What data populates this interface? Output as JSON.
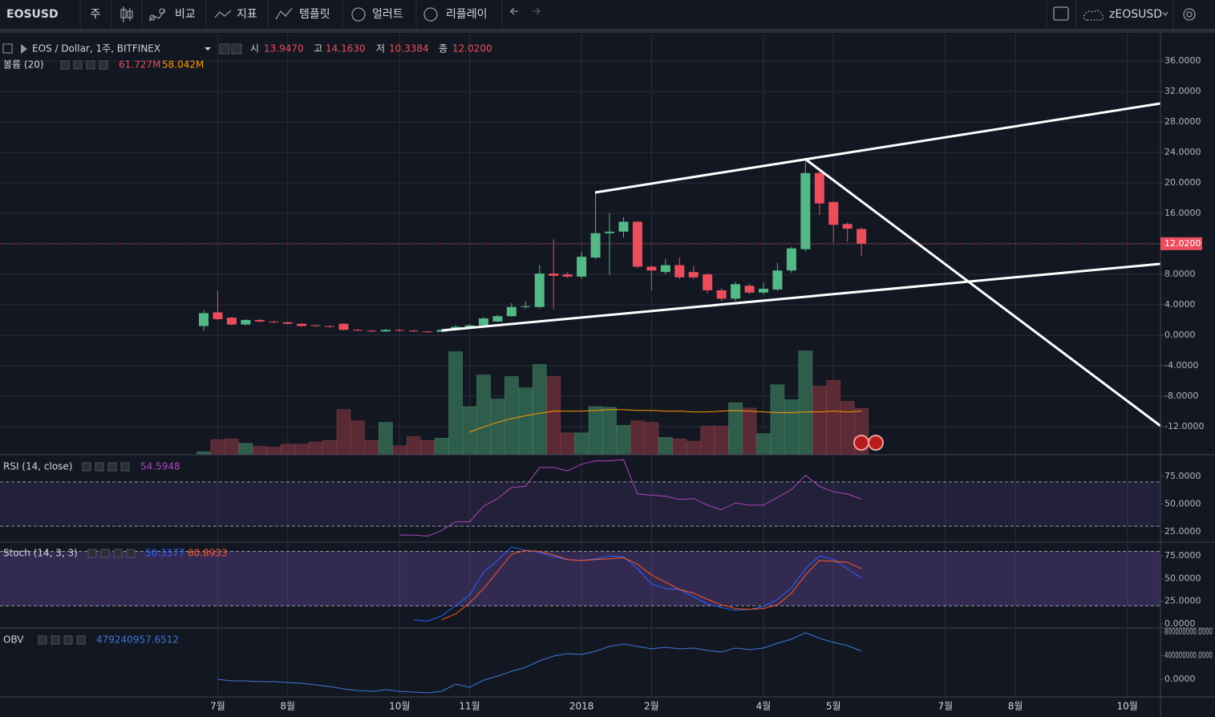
{
  "toolbar": {
    "symbol": "EOSUSD",
    "interval": "주",
    "items": [
      "비교",
      "지표",
      "템플릿",
      "얼러트",
      "리플레이"
    ],
    "account": "zEOSUSD"
  },
  "time_axis": {
    "categories": [
      null,
      "7월",
      null,
      null,
      null,
      null,
      "8월",
      null,
      null,
      null,
      null,
      null,
      null,
      null,
      "10월",
      null,
      null,
      null,
      null,
      "11월",
      null,
      null,
      null,
      null,
      null,
      null,
      null,
      "2018",
      null,
      null,
      null,
      null,
      "2월",
      null,
      null,
      null,
      null,
      null,
      null,
      null,
      "4월",
      null,
      null,
      null,
      null,
      "5월",
      null,
      null,
      null,
      null,
      null,
      null,
      null,
      "7월",
      null,
      null,
      null,
      null,
      "8월",
      null,
      null,
      null,
      null,
      null,
      null,
      null,
      "10월",
      null,
      null
    ]
  },
  "chart_data": [
    {
      "type": "candlestick",
      "title": "EOS / Dollar, 1주, BITFINEX",
      "legend_items": [
        {
          "label": "시",
          "value": "13.9470"
        },
        {
          "label": "고",
          "value": "14.1630"
        },
        {
          "label": "저",
          "value": "10.3384"
        },
        {
          "label": "종",
          "value": "12.0200"
        }
      ],
      "open": [
        1.2,
        3.0,
        2.3,
        1.4,
        2.0,
        1.8,
        1.7,
        1.5,
        1.3,
        1.2,
        1.5,
        0.7,
        0.6,
        0.5,
        0.7,
        0.6,
        0.5,
        0.45,
        0.7,
        1.1,
        1.3,
        1.8,
        2.5,
        3.7,
        3.7,
        8.1,
        8.0,
        7.7,
        10.2,
        13.4,
        13.6,
        14.9,
        9.0,
        8.3,
        9.2,
        8.3,
        8.0,
        5.9,
        4.8,
        6.5,
        5.6,
        6.0,
        8.5,
        11.3,
        21.3,
        17.5,
        14.6,
        13.947
      ],
      "high": [
        3.3,
        5.8,
        2.4,
        2.1,
        2.1,
        1.9,
        1.8,
        1.6,
        1.4,
        1.3,
        1.6,
        0.8,
        0.7,
        0.8,
        0.8,
        0.7,
        0.6,
        0.8,
        1.3,
        1.5,
        2.4,
        2.7,
        4.2,
        4.5,
        9.2,
        12.6,
        8.3,
        11.0,
        18.7,
        16.0,
        15.5,
        15.0,
        9.2,
        10.0,
        10.2,
        9.1,
        8.2,
        6.2,
        7.0,
        6.8,
        6.9,
        9.5,
        11.6,
        22.8,
        21.8,
        17.6,
        14.8,
        14.163
      ],
      "low": [
        0.6,
        2.0,
        1.3,
        1.3,
        1.7,
        1.6,
        1.4,
        1.1,
        1.1,
        1.0,
        0.6,
        0.5,
        0.4,
        0.4,
        0.5,
        0.4,
        0.35,
        0.4,
        0.6,
        1.0,
        1.2,
        1.7,
        2.4,
        3.5,
        3.5,
        3.4,
        7.5,
        7.4,
        10.0,
        7.9,
        12.8,
        8.8,
        5.9,
        8.0,
        7.4,
        7.4,
        5.5,
        4.5,
        4.5,
        5.4,
        5.3,
        5.8,
        8.2,
        11.0,
        15.8,
        12.2,
        12.3,
        10.3384
      ],
      "close": [
        2.9,
        2.1,
        1.4,
        2.0,
        1.8,
        1.7,
        1.5,
        1.2,
        1.2,
        1.1,
        0.7,
        0.6,
        0.5,
        0.7,
        0.6,
        0.5,
        0.45,
        0.7,
        1.1,
        1.3,
        2.2,
        2.5,
        3.7,
        3.8,
        8.1,
        7.8,
        7.7,
        10.3,
        13.4,
        13.6,
        14.9,
        9.0,
        8.5,
        9.2,
        7.6,
        7.6,
        5.9,
        4.8,
        6.7,
        5.6,
        6.1,
        8.5,
        11.4,
        21.3,
        17.3,
        14.5,
        14.0,
        12.02
      ],
      "up_color": "#53b987",
      "down_color": "#eb4d5c",
      "ylim": [
        -15.7,
        39.6
      ],
      "yticks": [
        {
          "value": 36,
          "label": "36.0000"
        },
        {
          "value": 32,
          "label": "32.0000"
        },
        {
          "value": 28,
          "label": "28.0000"
        },
        {
          "value": 24,
          "label": "24.0000"
        },
        {
          "value": 20,
          "label": "20.0000"
        },
        {
          "value": 16,
          "label": "16.0000"
        },
        {
          "value": 12,
          "label": "12.0000"
        },
        {
          "value": 8,
          "label": "8.0000"
        },
        {
          "value": 4,
          "label": "4.0000"
        },
        {
          "value": 0,
          "label": "0.0000"
        },
        {
          "value": -4,
          "label": "-4.0000"
        },
        {
          "value": -8,
          "label": "-8.0000"
        },
        {
          "value": -12,
          "label": "-12.0000"
        }
      ],
      "grid": true
    },
    {
      "type": "bar",
      "title": "볼륨 (20)",
      "values": [
        4,
        20,
        21,
        15,
        11,
        10,
        14,
        14,
        17,
        19,
        60,
        45,
        19,
        43,
        12,
        24,
        19,
        22,
        137,
        64,
        106,
        74,
        104,
        89,
        120,
        104,
        29,
        29,
        64,
        63,
        39,
        45,
        43,
        23,
        21,
        18,
        38,
        38,
        69,
        62,
        28,
        93,
        73,
        138,
        91,
        99,
        71,
        61.727
      ],
      "ma_values": [
        null,
        null,
        null,
        null,
        null,
        null,
        null,
        null,
        null,
        null,
        null,
        null,
        null,
        null,
        null,
        null,
        null,
        null,
        null,
        30,
        37,
        43,
        48,
        52,
        55,
        58,
        58,
        58,
        59,
        60,
        60,
        59,
        59,
        58,
        58,
        57,
        57,
        58,
        59,
        58,
        57,
        56,
        56,
        57,
        57,
        58,
        57,
        58.042
      ],
      "legend_labels": [
        "61.727M",
        "58.042M"
      ],
      "up_color": "#2f5d4b",
      "down_color": "#5a2a35",
      "ma_color": "#ff9800",
      "legend_color": "#e04f5f",
      "ylim": [
        0,
        560
      ]
    },
    {
      "type": "line",
      "title": "RSI (14, close)",
      "values": [
        null,
        null,
        null,
        null,
        null,
        null,
        null,
        null,
        null,
        null,
        null,
        null,
        null,
        null,
        22,
        22,
        21,
        26,
        34,
        34,
        48,
        55,
        65,
        66,
        83,
        83,
        80,
        86,
        89,
        89,
        90,
        59,
        58,
        57,
        54,
        55,
        49,
        45,
        51,
        49,
        49,
        56,
        63,
        76,
        66,
        61,
        59,
        54.5948
      ],
      "color": "#ab47bc",
      "bands": [
        30,
        70
      ],
      "band_color": "#7e57c2",
      "ylim": [
        16.3,
        93.8
      ],
      "yticks": [
        {
          "value": 75,
          "label": "75.0000"
        },
        {
          "value": 50,
          "label": "50.0000"
        },
        {
          "value": 25,
          "label": "25.0000"
        }
      ]
    },
    {
      "type": "line",
      "title": "Stoch (14, 3, 3)",
      "series": [
        {
          "color": "#2962ff",
          "values": [
            null,
            null,
            null,
            null,
            null,
            null,
            null,
            null,
            null,
            null,
            null,
            null,
            null,
            null,
            null,
            4.5,
            3,
            9,
            20,
            32,
            57,
            70,
            85,
            81,
            79,
            74,
            71,
            70,
            72,
            75,
            74,
            61,
            44,
            39,
            38,
            30,
            22,
            18,
            15,
            16,
            19,
            27,
            40,
            61,
            75,
            71,
            61,
            50.3377
          ]
        },
        {
          "color": "#ff5722",
          "values": [
            null,
            null,
            null,
            null,
            null,
            null,
            null,
            null,
            null,
            null,
            null,
            null,
            null,
            null,
            null,
            null,
            null,
            4.5,
            11,
            23,
            39,
            58,
            77,
            81,
            80,
            76,
            71,
            70,
            71,
            72,
            73,
            66,
            54,
            46,
            38,
            34,
            27,
            21,
            17,
            16,
            17,
            21,
            34,
            54,
            70,
            69,
            68,
            60.8933
          ]
        }
      ],
      "bands": [
        20,
        80
      ],
      "band_color": "#7e57c2",
      "ylim": [
        -3.6,
        89.3
      ],
      "yticks": [
        {
          "value": 75,
          "label": "75.0000"
        },
        {
          "value": 50,
          "label": "50.0000"
        },
        {
          "value": 25,
          "label": "25.0000"
        },
        {
          "value": 0,
          "label": "0.0000"
        }
      ]
    },
    {
      "type": "line",
      "title": "OBV",
      "values": [
        null,
        0,
        -27000000,
        -27000000,
        -40000000,
        -40000000,
        -54000000,
        -68000000,
        -95000000,
        -122000000,
        -163000000,
        -190000000,
        -203000000,
        -176000000,
        -203000000,
        -217000000,
        -230000000,
        -203000000,
        -81000000,
        -136000000,
        -14000000,
        54000000,
        136000000,
        203000000,
        312000000,
        393000000,
        434000000,
        420000000,
        475000000,
        556000000,
        597000000,
        556000000,
        515000000,
        542000000,
        515000000,
        529000000,
        488000000,
        461000000,
        529000000,
        502000000,
        529000000,
        610000000,
        678000000,
        787000000,
        692000000,
        624000000,
        569000000,
        479240957.6512
      ],
      "color": "#3c78d8",
      "ylim": [
        -285000000,
        854000000
      ],
      "yticks": [
        {
          "value": 800000000,
          "label": "800000000.0000"
        },
        {
          "value": 400000000,
          "label": "400000000.0000"
        },
        {
          "value": 0,
          "label": "0.0000"
        }
      ]
    }
  ]
}
